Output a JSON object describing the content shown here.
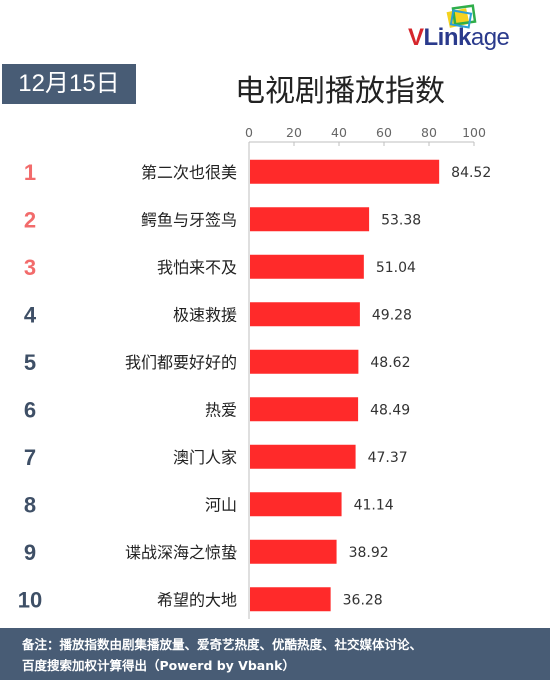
{
  "logo": {
    "text_v": "V",
    "text_link": "Link",
    "text_age": "age"
  },
  "date": "12月15日",
  "title": "电视剧播放指数",
  "chart_data": {
    "type": "bar",
    "orientation": "horizontal",
    "title": "电视剧播放指数",
    "xlim": [
      0,
      100
    ],
    "ticks": [
      0,
      20,
      40,
      60,
      80,
      100
    ],
    "tick_labels": [
      "0",
      "20",
      "40",
      "60",
      "80",
      "100"
    ],
    "axis_position": "top",
    "grid": false,
    "ranks": [
      "1",
      "2",
      "3",
      "4",
      "5",
      "6",
      "7",
      "8",
      "9",
      "10"
    ],
    "categories": [
      "第二次也很美",
      "鳄鱼与牙签鸟",
      "我怕来不及",
      "极速救援",
      "我们都要好好的",
      "热爱",
      "澳门人家",
      "河山",
      "谍战深海之惊蛰",
      "希望的大地"
    ],
    "values": [
      84.52,
      53.38,
      51.04,
      49.28,
      48.62,
      48.49,
      47.37,
      41.14,
      38.92,
      36.28
    ],
    "value_labels": [
      "84.52",
      "53.38",
      "51.04",
      "49.28",
      "48.62",
      "48.49",
      "47.37",
      "41.14",
      "38.92",
      "36.28"
    ],
    "bar_color": "#ff2a2a",
    "top_rank_color": "#f26b6b",
    "rank_color": "#3e4f66"
  },
  "footer": {
    "line1": "备注：播放指数由剧集播放量、爱奇艺热度、优酷热度、社交媒体讨论、",
    "line2": "百度搜索加权计算得出（Powerd by Vbank）"
  }
}
